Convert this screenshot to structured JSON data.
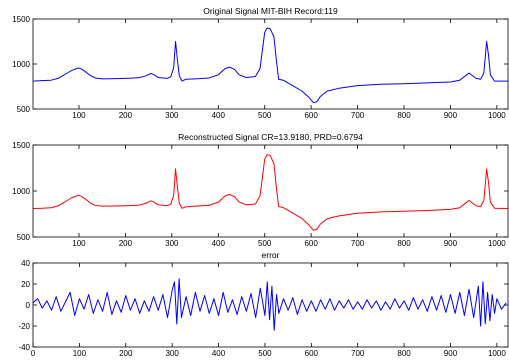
{
  "chart_data": [
    {
      "type": "line",
      "title": "Original Signal MIT-BIH Record:119",
      "xlim": [
        1,
        1024
      ],
      "ylim": [
        500,
        1500
      ],
      "xticks": [
        100,
        200,
        300,
        400,
        500,
        600,
        700,
        800,
        900,
        1000
      ],
      "yticks": [
        500,
        1000,
        1500
      ],
      "grid": false,
      "series": [
        {
          "color": "#0000ff",
          "x": [
            1,
            20,
            40,
            55,
            65,
            75,
            85,
            95,
            100,
            105,
            115,
            125,
            135,
            150,
            180,
            210,
            230,
            245,
            255,
            262,
            270,
            290,
            298,
            304,
            308,
            312,
            316,
            322,
            330,
            350,
            380,
            400,
            415,
            425,
            435,
            445,
            460,
            480,
            490,
            495,
            500,
            505,
            512,
            520,
            525,
            530,
            540,
            560,
            580,
            595,
            605,
            612,
            620,
            635,
            660,
            700,
            750,
            800,
            850,
            900,
            920,
            930,
            940,
            955,
            965,
            972,
            978,
            982,
            986,
            995,
            1024
          ],
          "y": [
            810,
            815,
            820,
            840,
            870,
            900,
            930,
            950,
            955,
            945,
            910,
            870,
            845,
            835,
            838,
            842,
            848,
            870,
            895,
            880,
            850,
            840,
            860,
            960,
            1250,
            1050,
            870,
            810,
            830,
            835,
            845,
            880,
            950,
            965,
            940,
            880,
            850,
            860,
            950,
            1150,
            1350,
            1400,
            1390,
            1300,
            1050,
            830,
            820,
            760,
            700,
            630,
            570,
            580,
            640,
            700,
            730,
            760,
            775,
            780,
            790,
            800,
            820,
            860,
            900,
            840,
            830,
            900,
            1250,
            1100,
            880,
            810,
            810
          ]
        }
      ]
    },
    {
      "type": "line",
      "title": "Reconstructed Signal CR=13.9180, PRD=0.6794",
      "xlim": [
        1,
        1024
      ],
      "ylim": [
        500,
        1500
      ],
      "xticks": [
        100,
        200,
        300,
        400,
        500,
        600,
        700,
        800,
        900,
        1000
      ],
      "yticks": [
        500,
        1000,
        1500
      ],
      "grid": false,
      "series": [
        {
          "color": "#ff0000",
          "x": [
            1,
            20,
            40,
            55,
            65,
            75,
            85,
            95,
            100,
            105,
            115,
            125,
            135,
            150,
            180,
            210,
            230,
            245,
            255,
            262,
            270,
            290,
            298,
            304,
            308,
            312,
            316,
            322,
            330,
            350,
            380,
            400,
            415,
            425,
            435,
            445,
            460,
            480,
            490,
            495,
            500,
            505,
            512,
            520,
            525,
            530,
            540,
            560,
            580,
            595,
            605,
            612,
            620,
            635,
            660,
            700,
            750,
            800,
            850,
            900,
            920,
            930,
            940,
            955,
            965,
            972,
            978,
            982,
            986,
            995,
            1024
          ],
          "y": [
            810,
            812,
            818,
            838,
            868,
            898,
            928,
            948,
            952,
            942,
            908,
            868,
            843,
            835,
            837,
            841,
            847,
            868,
            893,
            878,
            850,
            840,
            858,
            955,
            1240,
            1045,
            868,
            812,
            828,
            835,
            844,
            878,
            948,
            962,
            938,
            880,
            850,
            858,
            948,
            1145,
            1345,
            1395,
            1385,
            1295,
            1045,
            832,
            820,
            762,
            702,
            632,
            573,
            582,
            640,
            700,
            730,
            758,
            773,
            780,
            788,
            800,
            818,
            858,
            898,
            840,
            830,
            898,
            1240,
            1095,
            880,
            812,
            810
          ]
        }
      ]
    },
    {
      "type": "line",
      "title": "error",
      "xlim": [
        0,
        1024
      ],
      "ylim": [
        -40,
        40
      ],
      "xticks": [
        0,
        100,
        200,
        300,
        400,
        500,
        600,
        700,
        800,
        900,
        1000
      ],
      "yticks": [
        -40,
        -20,
        0,
        20,
        40
      ],
      "grid": false,
      "series": [
        {
          "color": "#0000ff",
          "x": [
            0,
            10,
            20,
            30,
            40,
            50,
            60,
            70,
            80,
            90,
            100,
            110,
            120,
            130,
            140,
            150,
            160,
            170,
            180,
            190,
            200,
            210,
            220,
            230,
            240,
            250,
            260,
            270,
            280,
            290,
            300,
            305,
            310,
            315,
            320,
            330,
            340,
            350,
            360,
            370,
            380,
            390,
            400,
            410,
            420,
            430,
            440,
            450,
            460,
            470,
            480,
            490,
            500,
            505,
            510,
            515,
            520,
            525,
            530,
            540,
            550,
            560,
            570,
            580,
            590,
            600,
            610,
            620,
            630,
            640,
            650,
            660,
            670,
            680,
            690,
            700,
            710,
            720,
            730,
            740,
            750,
            760,
            770,
            780,
            790,
            800,
            810,
            820,
            830,
            840,
            850,
            860,
            870,
            880,
            890,
            900,
            910,
            920,
            930,
            940,
            950,
            960,
            965,
            970,
            975,
            980,
            985,
            990,
            995,
            1000,
            1010,
            1020
          ],
          "y": [
            2,
            6,
            -3,
            4,
            -5,
            8,
            -6,
            3,
            12,
            -10,
            6,
            -4,
            10,
            -8,
            5,
            -6,
            12,
            -9,
            4,
            -7,
            9,
            -5,
            6,
            -8,
            4,
            -6,
            8,
            -5,
            10,
            -12,
            14,
            22,
            -18,
            25,
            -12,
            8,
            -10,
            12,
            -6,
            9,
            -8,
            6,
            -10,
            12,
            -7,
            5,
            -9,
            8,
            -6,
            11,
            -12,
            16,
            -10,
            22,
            -14,
            18,
            -24,
            10,
            -8,
            6,
            -5,
            7,
            -9,
            5,
            -6,
            4,
            -6,
            5,
            -4,
            6,
            -5,
            4,
            -3,
            5,
            -4,
            3,
            -4,
            5,
            -3,
            4,
            -5,
            3,
            -4,
            6,
            -3,
            4,
            -5,
            7,
            -4,
            5,
            -6,
            8,
            -5,
            9,
            -7,
            10,
            -8,
            12,
            -10,
            15,
            -12,
            18,
            -20,
            22,
            -18,
            12,
            -15,
            10,
            -8,
            6,
            -4,
            2
          ]
        }
      ]
    }
  ]
}
